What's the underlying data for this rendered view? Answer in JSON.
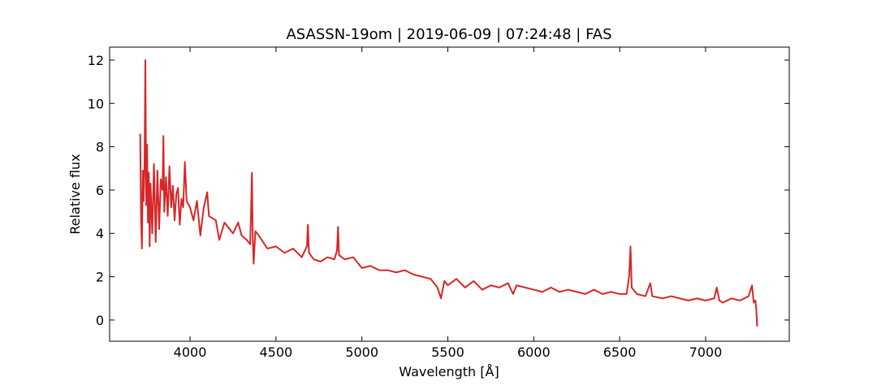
{
  "chart_data": {
    "type": "line",
    "title": "ASASSN-19om | 2019-06-09 | 07:24:48 | FAS",
    "xlabel": "Wavelength [Å]",
    "ylabel": "Relative flux",
    "x": [
      3710,
      3715,
      3720,
      3725,
      3730,
      3735,
      3740,
      3745,
      3750,
      3755,
      3760,
      3765,
      3770,
      3780,
      3790,
      3800,
      3810,
      3820,
      3830,
      3840,
      3845,
      3850,
      3860,
      3870,
      3880,
      3890,
      3900,
      3910,
      3920,
      3930,
      3940,
      3950,
      3960,
      3970,
      3980,
      4000,
      4020,
      4040,
      4060,
      4080,
      4100,
      4110,
      4150,
      4170,
      4200,
      4250,
      4280,
      4300,
      4330,
      4350,
      4355,
      4360,
      4365,
      4370,
      4380,
      4400,
      4450,
      4500,
      4550,
      4600,
      4650,
      4680,
      4686,
      4692,
      4720,
      4760,
      4800,
      4840,
      4855,
      4861,
      4867,
      4900,
      4950,
      5000,
      5050,
      5100,
      5150,
      5200,
      5250,
      5300,
      5350,
      5400,
      5440,
      5460,
      5480,
      5500,
      5550,
      5600,
      5650,
      5700,
      5750,
      5800,
      5850,
      5880,
      5900,
      5950,
      6000,
      6050,
      6100,
      6150,
      6200,
      6250,
      6300,
      6350,
      6400,
      6450,
      6500,
      6540,
      6555,
      6563,
      6570,
      6600,
      6650,
      6678,
      6690,
      6750,
      6800,
      6850,
      6900,
      6950,
      7000,
      7050,
      7065,
      7080,
      7100,
      7150,
      7200,
      7250,
      7270,
      7280,
      7290,
      7295,
      7300
    ],
    "series": [
      {
        "name": "ASASSN-19om",
        "color": "#d62728",
        "values": [
          8.6,
          4.7,
          3.3,
          6.9,
          5.5,
          7.1,
          12.0,
          5.3,
          8.1,
          4.5,
          6.8,
          3.4,
          6.3,
          4.0,
          7.2,
          3.6,
          6.9,
          4.2,
          6.5,
          6.0,
          8.5,
          5.0,
          6.6,
          4.8,
          7.1,
          5.2,
          6.2,
          4.6,
          5.8,
          6.1,
          4.4,
          5.6,
          5.2,
          7.3,
          5.5,
          5.2,
          4.6,
          5.5,
          3.9,
          5.2,
          5.9,
          4.8,
          4.6,
          3.7,
          4.5,
          4.0,
          4.5,
          3.9,
          3.7,
          3.5,
          5.0,
          6.8,
          3.8,
          2.6,
          4.1,
          3.9,
          3.3,
          3.4,
          3.1,
          3.3,
          2.9,
          3.4,
          4.4,
          3.1,
          2.8,
          2.7,
          2.9,
          2.8,
          3.2,
          4.3,
          3.0,
          2.8,
          2.9,
          2.4,
          2.5,
          2.3,
          2.3,
          2.2,
          2.3,
          2.1,
          2.0,
          1.9,
          1.5,
          1.0,
          1.8,
          1.6,
          1.9,
          1.5,
          1.8,
          1.4,
          1.6,
          1.5,
          1.7,
          1.2,
          1.6,
          1.5,
          1.4,
          1.3,
          1.5,
          1.3,
          1.4,
          1.3,
          1.2,
          1.4,
          1.2,
          1.3,
          1.2,
          1.2,
          2.0,
          3.4,
          1.5,
          1.2,
          1.1,
          1.7,
          1.1,
          1.0,
          1.1,
          1.0,
          0.9,
          1.0,
          0.9,
          1.0,
          1.5,
          0.9,
          0.8,
          1.0,
          0.9,
          1.1,
          1.6,
          0.8,
          0.9,
          0.5,
          -0.3
        ]
      }
    ],
    "xlim": [
      3532,
      7487
    ],
    "ylim": [
      -0.98,
      12.6
    ],
    "xticks": [
      4000,
      4500,
      5000,
      5500,
      6000,
      6500,
      7000
    ],
    "yticks": [
      0,
      2,
      4,
      6,
      8,
      10,
      12
    ],
    "grid": false
  }
}
